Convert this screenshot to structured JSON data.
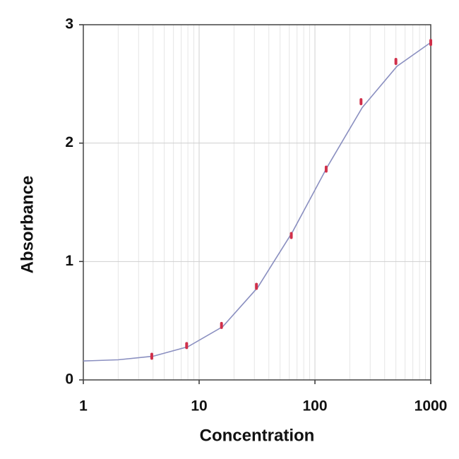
{
  "chart_data": {
    "type": "scatter",
    "xlabel": "Concentration",
    "ylabel": "Absorbance",
    "xscale": "log",
    "grid": true,
    "xlim": [
      1,
      1000
    ],
    "ylim": [
      0,
      3
    ],
    "xticks": [
      1,
      10,
      100,
      1000
    ],
    "yticks": [
      0,
      1,
      2,
      3
    ],
    "xminorticks": [
      2,
      3,
      4,
      5,
      6,
      7,
      8,
      9,
      20,
      30,
      40,
      50,
      60,
      70,
      80,
      90,
      200,
      300,
      400,
      500,
      600,
      700,
      800,
      900
    ],
    "series": [
      {
        "kind": "points",
        "color": "#d0304a",
        "x": [
          3.9,
          7.8,
          15.6,
          31.25,
          62.5,
          125,
          250,
          500,
          1000
        ],
        "values": [
          0.2,
          0.29,
          0.46,
          0.79,
          1.22,
          1.78,
          2.35,
          2.69,
          2.85
        ]
      },
      {
        "kind": "curve",
        "color": "#8a8fc0",
        "x": [
          1,
          2,
          4,
          8,
          16,
          32,
          64,
          128,
          256,
          512,
          1000
        ],
        "values": [
          0.16,
          0.17,
          0.2,
          0.28,
          0.45,
          0.78,
          1.25,
          1.8,
          2.3,
          2.65,
          2.85
        ]
      }
    ]
  }
}
